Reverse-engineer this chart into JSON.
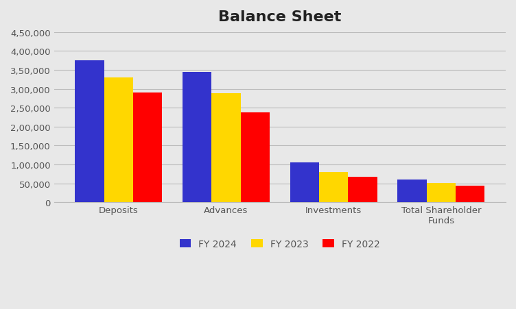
{
  "title": "Balance Sheet",
  "categories": [
    "Deposits",
    "Advances",
    "Investments",
    "Total Shareholder\nFunds"
  ],
  "series": [
    {
      "label": "FY 2024",
      "color": "#3333CC",
      "values": [
        375000,
        345000,
        105000,
        60000
      ]
    },
    {
      "label": "FY 2023",
      "color": "#FFD700",
      "values": [
        330000,
        288000,
        80000,
        52000
      ]
    },
    {
      "label": "FY 2022",
      "color": "#FF0000",
      "values": [
        290000,
        238000,
        67000,
        45000
      ]
    }
  ],
  "ylim": [
    0,
    450000
  ],
  "yticks": [
    0,
    50000,
    100000,
    150000,
    200000,
    250000,
    300000,
    350000,
    400000,
    450000
  ],
  "ytick_labels": [
    "0",
    "50,000",
    "1,00,000",
    "1,50,000",
    "2,00,000",
    "2,50,000",
    "3,00,000",
    "3,50,000",
    "4,00,000",
    "4,50,000"
  ],
  "background_color": "#E8E8E8",
  "plot_bg_color": "#E8E8E8",
  "grid_color": "#BBBBBB",
  "title_fontsize": 16,
  "tick_fontsize": 9.5,
  "legend_fontsize": 10,
  "bar_width": 0.27
}
